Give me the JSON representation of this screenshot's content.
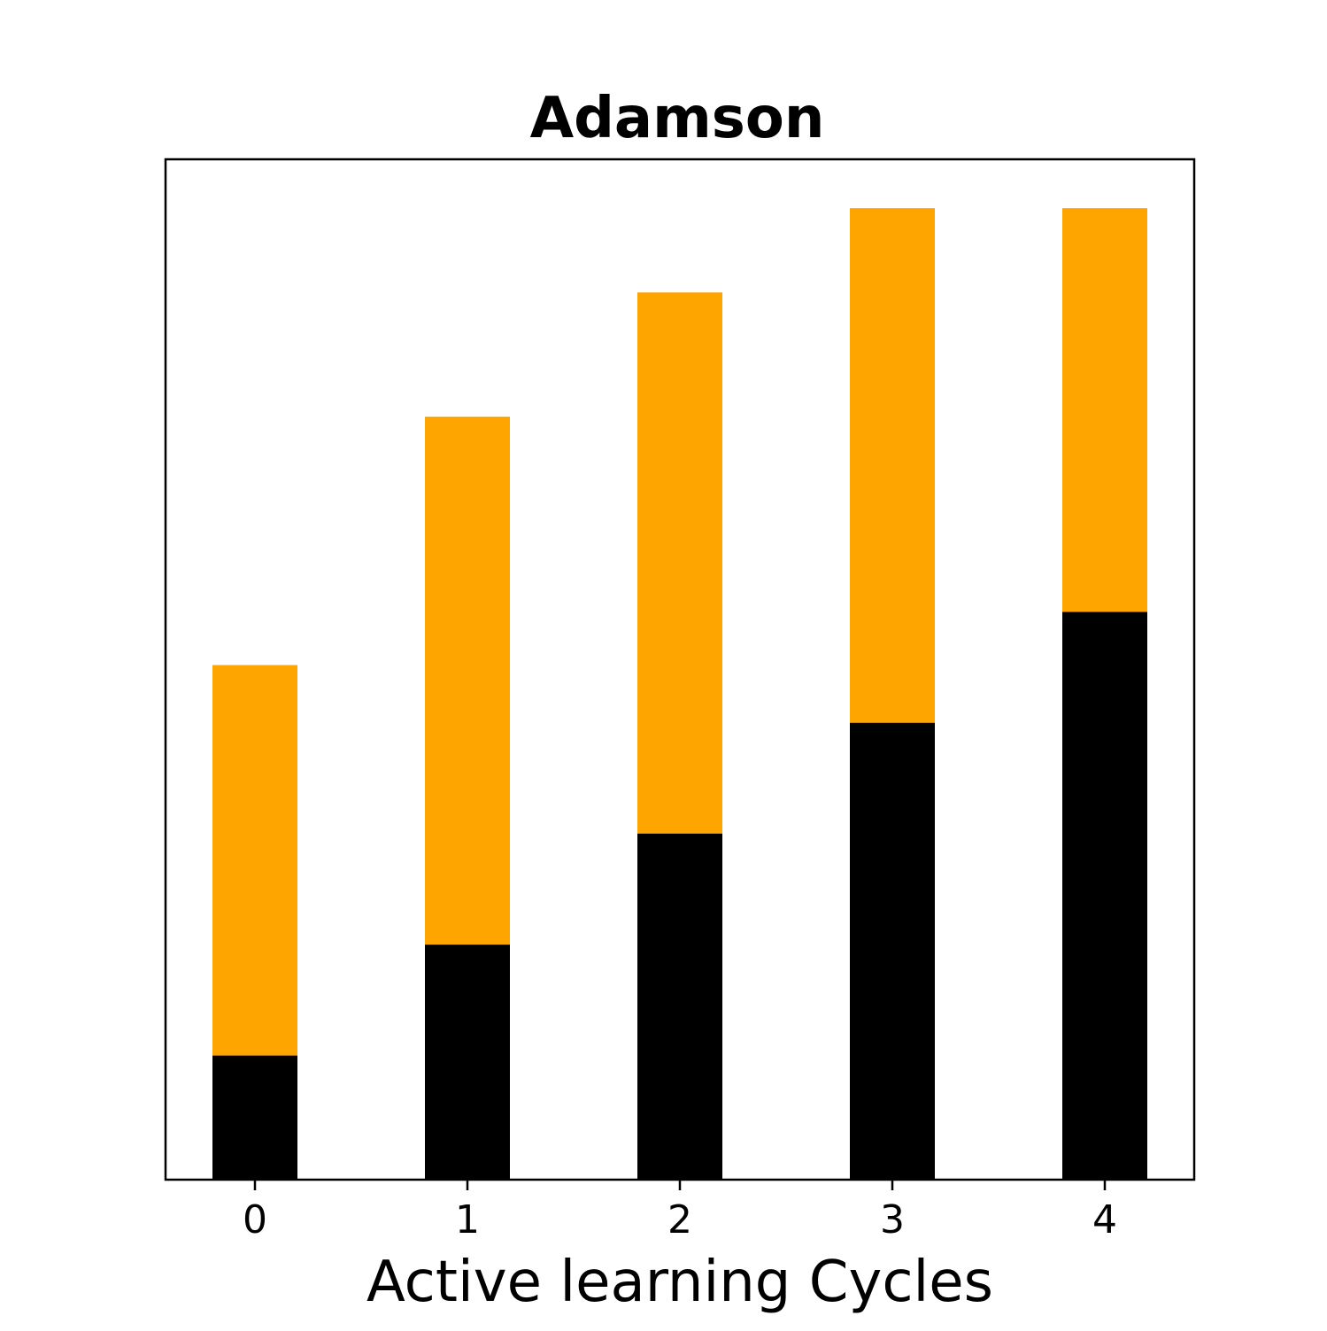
{
  "chart_data": {
    "type": "bar",
    "stacked": true,
    "title": "Adamson",
    "xlabel": "Active learning Cycles",
    "ylabel": "",
    "categories": [
      "0",
      "1",
      "2",
      "3",
      "4"
    ],
    "series": [
      {
        "values": [
          14,
          26.5,
          39,
          51.5,
          64
        ],
        "color": "#000000"
      },
      {
        "values": [
          44,
          59.5,
          61,
          58,
          45.5
        ],
        "color": "#FFA500"
      }
    ],
    "totals": [
      58,
      86,
      100,
      109.5,
      109.5
    ],
    "ylim": [
      0,
      115
    ],
    "y_ticks_shown": false,
    "grid": false,
    "legend": "none"
  }
}
